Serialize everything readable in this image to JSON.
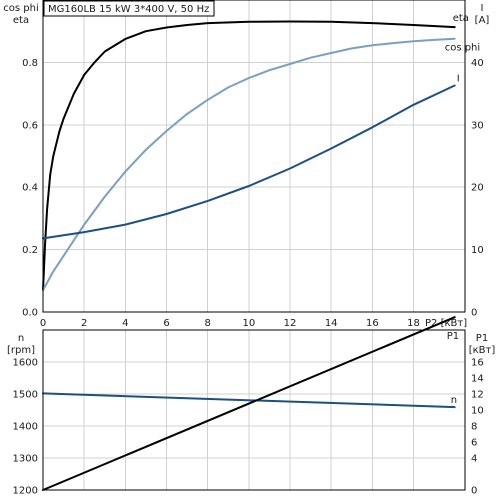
{
  "chart_data": [
    {
      "type": "line",
      "title": "MG160LB   15 kW   3*400 V, 50 Hz",
      "xlabel": "P2 [кВт]",
      "ylabel_left": [
        "cos phi",
        "eta"
      ],
      "ylabel_right": [
        "I",
        "[A]"
      ],
      "xlim": [
        0,
        20.5
      ],
      "ylim_left": [
        0,
        1.0
      ],
      "ylim_right": [
        0,
        50
      ],
      "x_ticks": [
        0,
        2,
        4,
        6,
        8,
        10,
        12,
        14,
        16,
        18
      ],
      "y_ticks_left": [
        "0.0",
        "0.2",
        "0.4",
        "0.6",
        "0.8"
      ],
      "y_ticks_right": [
        0,
        10,
        20,
        30,
        40
      ],
      "grid": true,
      "series": [
        {
          "name": "eta",
          "axis": "left",
          "color": "#000000",
          "x": [
            0,
            0.1,
            0.2,
            0.35,
            0.5,
            0.8,
            1.0,
            1.5,
            2,
            2.5,
            3,
            4,
            5,
            6,
            7,
            8,
            10,
            12,
            14,
            16,
            18,
            20
          ],
          "y": [
            0.07,
            0.22,
            0.33,
            0.44,
            0.5,
            0.58,
            0.62,
            0.7,
            0.76,
            0.8,
            0.835,
            0.875,
            0.9,
            0.912,
            0.92,
            0.926,
            0.93,
            0.931,
            0.93,
            0.926,
            0.92,
            0.913
          ]
        },
        {
          "name": "cos phi",
          "axis": "left",
          "color": "#7a9fc0",
          "x": [
            0,
            0.5,
            1,
            2,
            3,
            4,
            5,
            6,
            7,
            8,
            9,
            10,
            11,
            12,
            13,
            14,
            15,
            16,
            17,
            18,
            19,
            20
          ],
          "y": [
            0.07,
            0.13,
            0.18,
            0.28,
            0.37,
            0.45,
            0.52,
            0.58,
            0.635,
            0.68,
            0.72,
            0.75,
            0.775,
            0.795,
            0.815,
            0.83,
            0.845,
            0.855,
            0.862,
            0.868,
            0.872,
            0.876
          ]
        },
        {
          "name": "I",
          "axis": "right",
          "color": "#1c4f82",
          "x": [
            0,
            2,
            4,
            6,
            8,
            10,
            12,
            14,
            16,
            18,
            20
          ],
          "y": [
            11.8,
            12.8,
            14.0,
            15.7,
            17.8,
            20.2,
            23.0,
            26.2,
            29.6,
            33.2,
            36.3
          ]
        }
      ]
    },
    {
      "type": "line",
      "xlim": [
        0,
        20.5
      ],
      "ylabel_left": [
        "n",
        "[rpm]"
      ],
      "ylabel_right": [
        "P1",
        "[кВт]"
      ],
      "ylim_left": [
        1200,
        1700
      ],
      "ylim_right": [
        0,
        20
      ],
      "y_ticks_left": [
        1200,
        1300,
        1400,
        1500,
        1600
      ],
      "y_ticks_right": [
        0,
        4,
        6,
        8,
        10,
        12,
        14,
        16
      ],
      "grid": true,
      "series": [
        {
          "name": "n",
          "axis": "left",
          "color": "#1c4f82",
          "x": [
            0,
            20
          ],
          "y": [
            1502,
            1459
          ]
        },
        {
          "name": "P1",
          "axis": "right",
          "color": "#000000",
          "x": [
            0,
            20
          ],
          "y": [
            0,
            21.6
          ]
        }
      ]
    }
  ]
}
